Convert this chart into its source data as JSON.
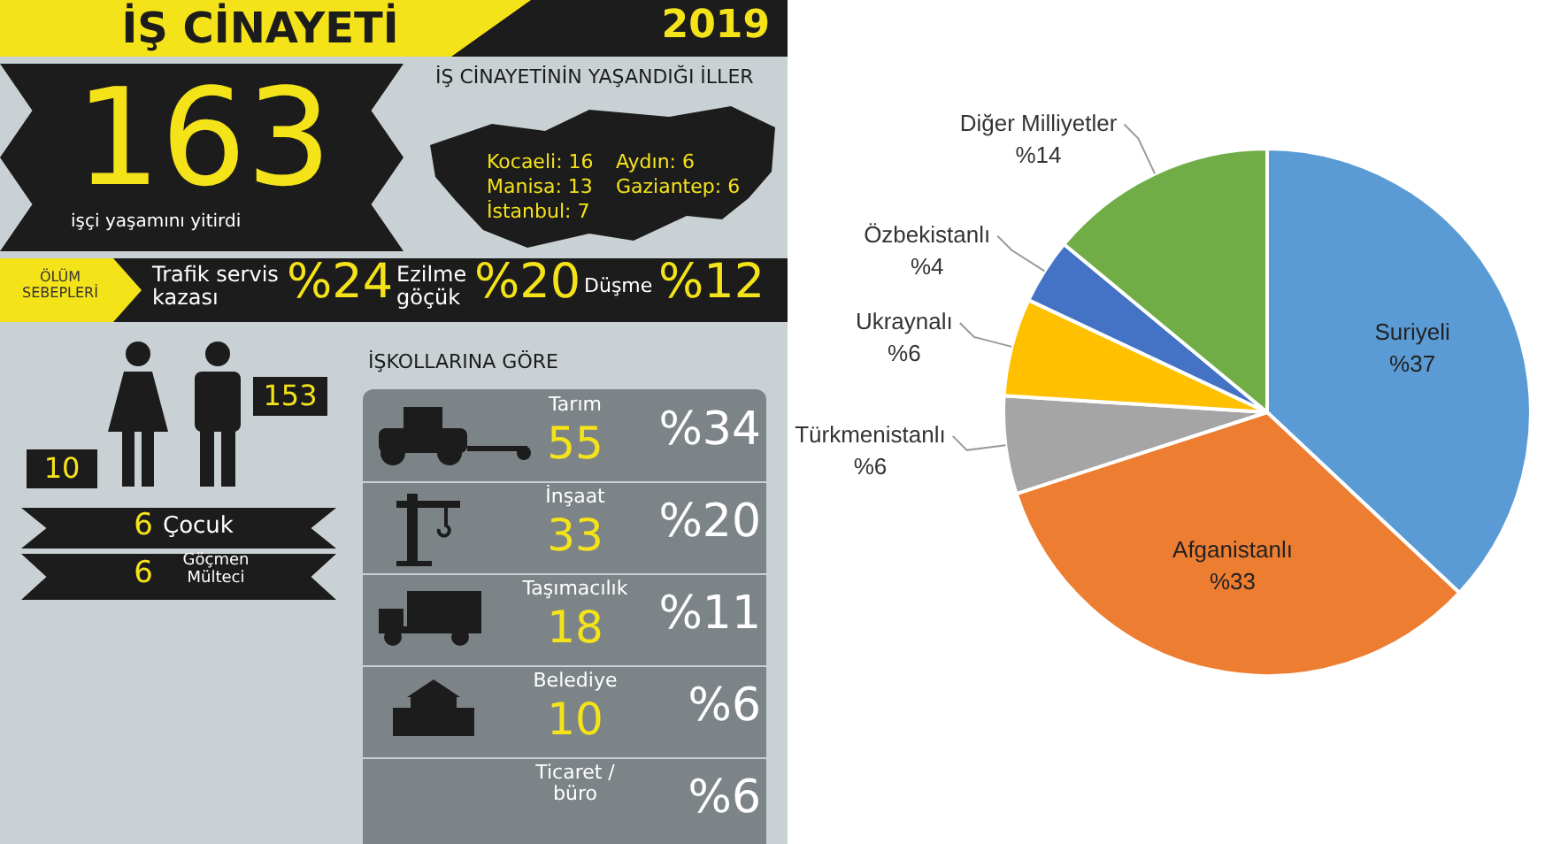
{
  "chart_data": [
    {
      "type": "other",
      "title": "İŞ CİNAYETİ",
      "annotations": [
        "2019",
        "163",
        "işçi yaşamını yitirdi",
        "İŞ CİNAYETİNİN YAŞANDIĞI İLLER",
        "Kocaeli: 16",
        "Aydın: 6",
        "Manisa: 13",
        "Gaziantep: 6",
        "İstanbul: 7",
        "ÖLÜM SEBEPLERİ",
        "Trafik servis kazası",
        "%24",
        "Ezilme göçük",
        "%20",
        "Düşme",
        "%12",
        "153",
        "10",
        "6",
        "Çocuk",
        "6",
        "Göçmen Mülteci",
        "İŞKOLLARINA GÖRE",
        "Tarım",
        "55",
        "%34",
        "İnşaat",
        "33",
        "%20",
        "Taşımacılık",
        "18",
        "%11",
        "Belediye",
        "10",
        "%6",
        "Ticaret / büro",
        "%6"
      ]
    },
    {
      "type": "pie",
      "categories": [
        "Suriyeli",
        "Afganistanlı",
        "Türkmenistanlı",
        "Ukraynalı",
        "Özbekistanlı",
        "Diğer Milliyetler"
      ],
      "values": [
        37,
        33,
        6,
        6,
        4,
        14
      ],
      "colors": [
        "#5b9bd5",
        "#ed7d31",
        "#a5a5a5",
        "#ffc000",
        "#4472c4",
        "#70ad47"
      ],
      "value_labels": [
        "%37",
        "%33",
        "%6",
        "%6",
        "%4",
        "%14"
      ],
      "legend": false
    }
  ]
}
